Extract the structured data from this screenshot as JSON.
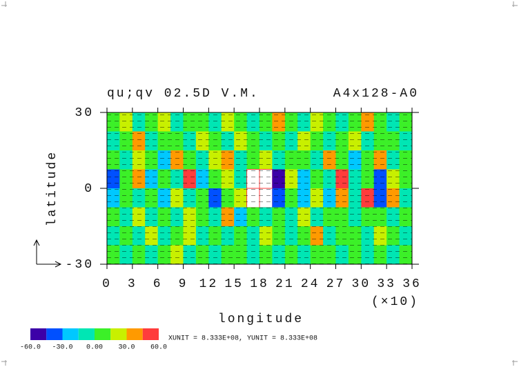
{
  "chart_data": {
    "type": "contour",
    "title": "qu;qv 02.5D V.M.",
    "subtitle": "A4x128-A0",
    "x_label": "longitude",
    "x_multiplier": "(×10)",
    "y_label": "latitude",
    "footnote": "XUNIT = 8.333E+08, YUNIT = 8.333E+08",
    "xlim": [
      0,
      36
    ],
    "xticks": [
      0,
      3,
      6,
      9,
      12,
      15,
      18,
      21,
      24,
      27,
      30,
      33,
      36
    ],
    "ylim": [
      -30,
      30
    ],
    "yticks": [
      -30,
      0,
      30
    ],
    "levels": [
      -60,
      -45,
      -30,
      -15,
      0,
      15,
      30,
      45,
      60
    ],
    "colors": [
      "#3c00a8",
      "#0050ff",
      "#00c8ff",
      "#00e6b4",
      "#3cf028",
      "#c8f000",
      "#ff9a00",
      "#ff3c3c"
    ],
    "colorbar_ticks": [
      {
        "value": -60,
        "label": "-60.0"
      },
      {
        "value": -30,
        "label": "-30.0"
      },
      {
        "value": 0,
        "label": "0.00"
      },
      {
        "value": 30,
        "label": "30.0"
      },
      {
        "value": 60,
        "label": "60.0"
      }
    ],
    "values": [
      [
        5,
        20,
        -5,
        8,
        25,
        -8,
        10,
        5,
        -10,
        18,
        6,
        -5,
        12,
        30,
        4,
        -8,
        20,
        6,
        -6,
        10,
        35,
        2,
        -5,
        12
      ],
      [
        -6,
        8,
        30,
        -10,
        6,
        12,
        -5,
        22,
        8,
        -12,
        15,
        5,
        -8,
        10,
        -4,
        25,
        8,
        -10,
        6,
        28,
        -6,
        12,
        8,
        -4
      ],
      [
        10,
        -8,
        15,
        6,
        -20,
        35,
        5,
        -10,
        20,
        40,
        -6,
        10,
        20,
        -15,
        8,
        6,
        -10,
        30,
        12,
        -25,
        8,
        40,
        -8,
        6
      ],
      [
        -40,
        8,
        35,
        -25,
        10,
        -8,
        45,
        -20,
        6,
        15,
        -10,
        70,
        80,
        -50,
        20,
        -30,
        8,
        -15,
        50,
        -8,
        12,
        -45,
        25,
        10
      ],
      [
        -20,
        12,
        -10,
        5,
        -30,
        20,
        -8,
        10,
        -35,
        8,
        25,
        75,
        70,
        -45,
        10,
        -25,
        18,
        -30,
        40,
        -10,
        55,
        -35,
        30,
        -6
      ],
      [
        8,
        -6,
        20,
        -12,
        10,
        -8,
        15,
        5,
        -10,
        35,
        -30,
        6,
        -8,
        10,
        -12,
        20,
        -6,
        8,
        12,
        -5,
        10,
        6,
        -15,
        8
      ],
      [
        -8,
        10,
        -5,
        15,
        -10,
        6,
        25,
        -12,
        8,
        -6,
        10,
        -8,
        20,
        5,
        -10,
        8,
        30,
        -8,
        6,
        12,
        -5,
        25,
        6,
        -10
      ],
      [
        10,
        -6,
        8,
        -12,
        5,
        15,
        -8,
        6,
        -15,
        10,
        5,
        -10,
        8,
        -6,
        12,
        -8,
        5,
        10,
        -12,
        8,
        -6,
        10,
        -8,
        5
      ]
    ]
  }
}
